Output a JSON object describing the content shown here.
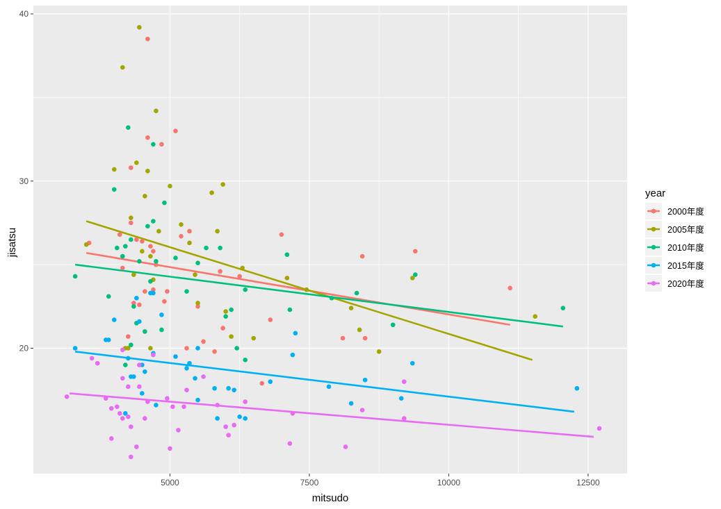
{
  "chart_data": {
    "type": "scatter",
    "xlabel": "mitsudo",
    "ylabel": "jisatsu",
    "xlim": [
      2550,
      13200
    ],
    "ylim": [
      12.5,
      40.5
    ],
    "x_ticks": [
      5000,
      7500,
      10000,
      12500
    ],
    "x_tick_labels": [
      "5000",
      "7500",
      "10000",
      "12500"
    ],
    "y_ticks": [
      20,
      30,
      40
    ],
    "y_tick_labels": [
      "20",
      "30",
      "40"
    ],
    "grid": true,
    "legend": {
      "title": "year",
      "placement": "right"
    },
    "series": [
      {
        "name": "2000年度",
        "color": "#F8766D",
        "trend": [
          [
            3500,
            25.7
          ],
          [
            11100,
            21.4
          ]
        ],
        "points": [
          [
            3550,
            26.3
          ],
          [
            4100,
            26.8
          ],
          [
            4150,
            24.8
          ],
          [
            4300,
            27.5
          ],
          [
            4300,
            30.8
          ],
          [
            4350,
            22.7
          ],
          [
            4400,
            26.5
          ],
          [
            4450,
            22.6
          ],
          [
            4500,
            26.4
          ],
          [
            4550,
            23.4
          ],
          [
            4600,
            32.6
          ],
          [
            4600,
            38.5
          ],
          [
            4650,
            26.1
          ],
          [
            4700,
            25.8
          ],
          [
            4700,
            23.5
          ],
          [
            4750,
            25.0
          ],
          [
            4850,
            32.2
          ],
          [
            4900,
            22.8
          ],
          [
            4950,
            23.4
          ],
          [
            5100,
            33.0
          ],
          [
            5200,
            26.7
          ],
          [
            5300,
            20.0
          ],
          [
            5350,
            27.0
          ],
          [
            5500,
            22.5
          ],
          [
            5600,
            20.4
          ],
          [
            5800,
            19.8
          ],
          [
            5900,
            24.6
          ],
          [
            5950,
            21.2
          ],
          [
            6250,
            24.3
          ],
          [
            6650,
            17.9
          ],
          [
            6800,
            21.7
          ],
          [
            7000,
            26.8
          ],
          [
            8100,
            20.6
          ],
          [
            8450,
            25.5
          ],
          [
            8500,
            20.6
          ],
          [
            9400,
            25.8
          ],
          [
            11100,
            23.6
          ],
          [
            4250,
            20.7
          ]
        ]
      },
      {
        "name": "2005年度",
        "color": "#A3A500",
        "trend": [
          [
            3500,
            27.6
          ],
          [
            11500,
            19.3
          ]
        ],
        "points": [
          [
            3500,
            26.2
          ],
          [
            4000,
            30.7
          ],
          [
            4150,
            36.8
          ],
          [
            4200,
            20.0
          ],
          [
            4300,
            27.8
          ],
          [
            4350,
            24.4
          ],
          [
            4400,
            31.1
          ],
          [
            4450,
            39.2
          ],
          [
            4500,
            25.8
          ],
          [
            4550,
            29.1
          ],
          [
            4600,
            30.6
          ],
          [
            4650,
            25.5
          ],
          [
            4700,
            24.1
          ],
          [
            4750,
            34.2
          ],
          [
            4800,
            27.0
          ],
          [
            5000,
            29.7
          ],
          [
            5200,
            27.4
          ],
          [
            5350,
            26.3
          ],
          [
            5450,
            24.4
          ],
          [
            5500,
            22.7
          ],
          [
            5750,
            29.3
          ],
          [
            5850,
            27.0
          ],
          [
            5950,
            29.8
          ],
          [
            6000,
            22.2
          ],
          [
            6100,
            20.7
          ],
          [
            6300,
            24.8
          ],
          [
            6500,
            20.6
          ],
          [
            7100,
            24.2
          ],
          [
            7450,
            23.5
          ],
          [
            8250,
            22.4
          ],
          [
            8400,
            21.1
          ],
          [
            8750,
            19.8
          ],
          [
            9350,
            24.2
          ],
          [
            11550,
            21.9
          ],
          [
            4250,
            20.0
          ],
          [
            4650,
            20.0
          ]
        ]
      },
      {
        "name": "2010年度",
        "color": "#00BF7D",
        "trend": [
          [
            3300,
            25.0
          ],
          [
            12050,
            21.3
          ]
        ],
        "points": [
          [
            3300,
            24.3
          ],
          [
            3900,
            23.1
          ],
          [
            4000,
            29.5
          ],
          [
            4050,
            26.0
          ],
          [
            4150,
            25.5
          ],
          [
            4200,
            26.1
          ],
          [
            4250,
            33.2
          ],
          [
            4300,
            20.2
          ],
          [
            4300,
            26.5
          ],
          [
            4350,
            22.5
          ],
          [
            4400,
            21.5
          ],
          [
            4450,
            25.2
          ],
          [
            4550,
            21.0
          ],
          [
            4600,
            27.3
          ],
          [
            4650,
            24.0
          ],
          [
            4700,
            27.6
          ],
          [
            4700,
            32.2
          ],
          [
            4750,
            25.2
          ],
          [
            4850,
            21.1
          ],
          [
            4900,
            28.7
          ],
          [
            5100,
            25.4
          ],
          [
            5300,
            23.4
          ],
          [
            5500,
            25.1
          ],
          [
            5650,
            26.0
          ],
          [
            5900,
            26.0
          ],
          [
            6000,
            21.9
          ],
          [
            6100,
            22.3
          ],
          [
            6200,
            20.0
          ],
          [
            6350,
            23.5
          ],
          [
            6350,
            19.3
          ],
          [
            7100,
            25.6
          ],
          [
            7150,
            22.3
          ],
          [
            7900,
            23.0
          ],
          [
            8350,
            23.3
          ],
          [
            9000,
            21.4
          ],
          [
            9400,
            24.4
          ],
          [
            12050,
            22.4
          ],
          [
            4200,
            19.0
          ]
        ]
      },
      {
        "name": "2015年度",
        "color": "#00B0F6",
        "trend": [
          [
            3300,
            19.8
          ],
          [
            12250,
            16.2
          ]
        ],
        "points": [
          [
            3300,
            20.0
          ],
          [
            3850,
            20.5
          ],
          [
            3900,
            20.5
          ],
          [
            4000,
            21.7
          ],
          [
            4200,
            16.1
          ],
          [
            4250,
            19.4
          ],
          [
            4300,
            18.3
          ],
          [
            4350,
            18.3
          ],
          [
            4400,
            23.0
          ],
          [
            4450,
            21.6
          ],
          [
            4500,
            17.3
          ],
          [
            4500,
            19.0
          ],
          [
            4550,
            18.6
          ],
          [
            4650,
            23.3
          ],
          [
            4700,
            23.3
          ],
          [
            4700,
            19.7
          ],
          [
            4750,
            16.6
          ],
          [
            4850,
            22.0
          ],
          [
            5100,
            19.5
          ],
          [
            5300,
            18.8
          ],
          [
            5350,
            19.1
          ],
          [
            5450,
            18.2
          ],
          [
            5500,
            20.0
          ],
          [
            5500,
            16.9
          ],
          [
            5800,
            17.6
          ],
          [
            5850,
            15.8
          ],
          [
            6050,
            17.6
          ],
          [
            6150,
            17.5
          ],
          [
            6250,
            15.9
          ],
          [
            6350,
            15.8
          ],
          [
            6800,
            18.0
          ],
          [
            7200,
            19.6
          ],
          [
            7250,
            20.9
          ],
          [
            7850,
            17.7
          ],
          [
            8250,
            16.7
          ],
          [
            8500,
            18.1
          ],
          [
            9150,
            17.0
          ],
          [
            9350,
            19.1
          ],
          [
            12300,
            17.6
          ]
        ]
      },
      {
        "name": "2020年度",
        "color": "#E76BF3",
        "trend": [
          [
            3200,
            17.3
          ],
          [
            12600,
            14.7
          ]
        ],
        "points": [
          [
            3150,
            17.1
          ],
          [
            3600,
            19.4
          ],
          [
            3700,
            19.1
          ],
          [
            3850,
            17.0
          ],
          [
            3950,
            16.4
          ],
          [
            3950,
            14.6
          ],
          [
            4050,
            16.5
          ],
          [
            4100,
            16.1
          ],
          [
            4150,
            15.8
          ],
          [
            4150,
            19.9
          ],
          [
            4150,
            18.2
          ],
          [
            4250,
            17.7
          ],
          [
            4250,
            15.9
          ],
          [
            4300,
            13.5
          ],
          [
            4300,
            15.3
          ],
          [
            4400,
            14.1
          ],
          [
            4450,
            17.7
          ],
          [
            4450,
            19.0
          ],
          [
            4550,
            15.8
          ],
          [
            4600,
            16.8
          ],
          [
            4700,
            19.6
          ],
          [
            4950,
            17.0
          ],
          [
            5000,
            14.0
          ],
          [
            5050,
            16.5
          ],
          [
            5150,
            15.1
          ],
          [
            5250,
            16.5
          ],
          [
            5300,
            17.5
          ],
          [
            5600,
            18.3
          ],
          [
            5850,
            16.6
          ],
          [
            6000,
            15.3
          ],
          [
            6050,
            14.8
          ],
          [
            6150,
            15.4
          ],
          [
            6350,
            16.8
          ],
          [
            7150,
            14.3
          ],
          [
            7200,
            16.1
          ],
          [
            8150,
            14.1
          ],
          [
            8450,
            16.3
          ],
          [
            9200,
            15.8
          ],
          [
            9200,
            18.0
          ],
          [
            12700,
            15.2
          ]
        ]
      }
    ]
  }
}
